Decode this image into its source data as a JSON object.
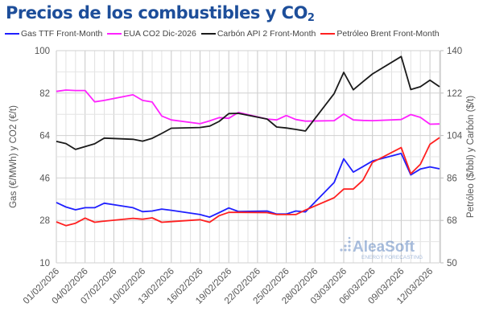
{
  "chart_data": {
    "type": "line",
    "title": "Precios de los combustibles y CO",
    "title_subscript": "2",
    "ylabel_left": "Gas (€/MWh) y CO2 (€/t)",
    "ylabel_right": "Petróleo ($/bbl) y Carbón ($/t)",
    "ylim_left": [
      10,
      100
    ],
    "ylim_right": [
      50,
      140
    ],
    "yticks_left": [
      10,
      28,
      46,
      64,
      82,
      100
    ],
    "yticks_right": [
      50,
      68,
      86,
      104,
      122,
      140
    ],
    "xlim": [
      "01/02/2026",
      "13/03/2026"
    ],
    "xticks": [
      "01/02/2026",
      "04/02/2026",
      "07/02/2026",
      "10/02/2026",
      "13/02/2026",
      "16/02/2026",
      "19/02/2026",
      "22/02/2026",
      "25/02/2026",
      "28/02/2026",
      "03/03/2026",
      "06/03/2026",
      "09/03/2026",
      "12/03/2026"
    ],
    "grid": true,
    "legend_position": "top",
    "x": [
      "01/02/2026",
      "02/02/2026",
      "03/02/2026",
      "04/02/2026",
      "05/02/2026",
      "06/02/2026",
      "09/02/2026",
      "10/02/2026",
      "11/02/2026",
      "12/02/2026",
      "13/02/2026",
      "16/02/2026",
      "17/02/2026",
      "18/02/2026",
      "19/02/2026",
      "20/02/2026",
      "23/02/2026",
      "24/02/2026",
      "25/02/2026",
      "26/02/2026",
      "27/02/2026",
      "02/03/2026",
      "03/03/2026",
      "04/03/2026",
      "05/03/2026",
      "06/03/2026",
      "09/03/2026",
      "10/03/2026",
      "11/03/2026",
      "12/03/2026",
      "13/03/2026"
    ],
    "series": [
      {
        "name": "Gas TTF Front-Month",
        "axis": "left",
        "color": "#1f1fff",
        "values": [
          35.6,
          33.7,
          32.5,
          33.4,
          33.4,
          35.3,
          33.4,
          31.7,
          32.0,
          32.8,
          32.3,
          30.5,
          29.4,
          31.3,
          33.3,
          31.8,
          32.0,
          30.7,
          30.7,
          32.0,
          31.6,
          44.1,
          54.1,
          48.5,
          50.8,
          53.2,
          56.4,
          47.3,
          49.8,
          50.7,
          49.9
        ]
      },
      {
        "name": "EUA CO2 Dic-2026",
        "axis": "left",
        "color": "#ff22ff",
        "values": [
          82.7,
          83.3,
          83.1,
          83.1,
          78.3,
          78.9,
          81.3,
          78.9,
          78.2,
          72.3,
          70.6,
          69.0,
          70.2,
          71.6,
          71.3,
          73.8,
          71.0,
          70.6,
          72.5,
          70.8,
          70.1,
          70.3,
          73.1,
          70.6,
          70.4,
          70.3,
          70.8,
          72.9,
          71.7,
          68.8,
          68.9
        ]
      },
      {
        "name": "Carbón API 2 Front-Month",
        "axis": "right",
        "color": "#1a1a1a",
        "values": [
          101.5,
          100.6,
          98.1,
          99.3,
          100.5,
          102.9,
          102.4,
          101.6,
          102.8,
          104.9,
          107.1,
          107.4,
          108.0,
          110.0,
          113.3,
          113.4,
          111.0,
          107.6,
          107.2,
          106.6,
          105.9,
          121.8,
          130.8,
          123.4,
          126.8,
          130.1,
          137.5,
          123.5,
          124.7,
          127.5,
          124.7
        ]
      },
      {
        "name": "Petróleo Brent Front-Month",
        "axis": "right",
        "color": "#ff2020",
        "values": [
          67.4,
          65.8,
          66.8,
          69.0,
          67.2,
          67.7,
          68.9,
          68.5,
          69.1,
          67.2,
          67.5,
          68.3,
          67.2,
          70.0,
          71.4,
          71.4,
          71.3,
          70.5,
          70.5,
          70.5,
          72.4,
          77.6,
          81.3,
          81.3,
          85.0,
          92.6,
          98.9,
          87.8,
          91.8,
          100.3,
          103.1
        ]
      }
    ],
    "watermark": {
      "brand": "AleaSoft",
      "tagline": "ENERGY FORECASTING"
    }
  }
}
